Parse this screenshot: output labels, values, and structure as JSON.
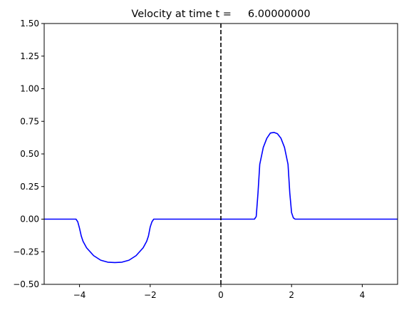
{
  "chart_data": {
    "type": "line",
    "title": "Velocity at time t =     6.00000000",
    "xlabel": "",
    "ylabel": "",
    "xlim": [
      -5,
      5
    ],
    "ylim": [
      -0.5,
      1.5
    ],
    "x_ticks": [
      -4,
      -2,
      0,
      2,
      4
    ],
    "x_tick_labels": [
      "−4",
      "−2",
      "0",
      "2",
      "4"
    ],
    "y_ticks": [
      -0.5,
      -0.25,
      0.0,
      0.25,
      0.5,
      0.75,
      1.0,
      1.25,
      1.5
    ],
    "y_tick_labels": [
      "−0.50",
      "−0.25",
      "0.00",
      "0.25",
      "0.50",
      "0.75",
      "1.00",
      "1.25",
      "1.50"
    ],
    "grid": false,
    "series": [
      {
        "color": "#0000ff",
        "style": "solid",
        "x": [
          -5.0,
          -4.1,
          -4.05,
          -4.0,
          -3.95,
          -3.9,
          -3.8,
          -3.6,
          -3.4,
          -3.2,
          -3.0,
          -2.8,
          -2.6,
          -2.4,
          -2.2,
          -2.1,
          -2.05,
          -2.0,
          -1.95,
          -1.9,
          0.95,
          1.0,
          1.05,
          1.1,
          1.2,
          1.3,
          1.4,
          1.5,
          1.6,
          1.7,
          1.8,
          1.9,
          1.95,
          2.0,
          2.05,
          2.1,
          5.0
        ],
        "y": [
          0.0,
          0.0,
          -0.02,
          -0.07,
          -0.13,
          -0.17,
          -0.22,
          -0.28,
          -0.315,
          -0.33,
          -0.333,
          -0.33,
          -0.315,
          -0.28,
          -0.22,
          -0.17,
          -0.13,
          -0.06,
          -0.02,
          0.0,
          0.0,
          0.02,
          0.2,
          0.42,
          0.55,
          0.62,
          0.66,
          0.665,
          0.655,
          0.62,
          0.55,
          0.42,
          0.2,
          0.05,
          0.01,
          0.0,
          0.0
        ]
      },
      {
        "color": "#000000",
        "style": "dashed",
        "x": [
          0,
          0
        ],
        "y": [
          -0.5,
          1.5
        ]
      }
    ]
  }
}
